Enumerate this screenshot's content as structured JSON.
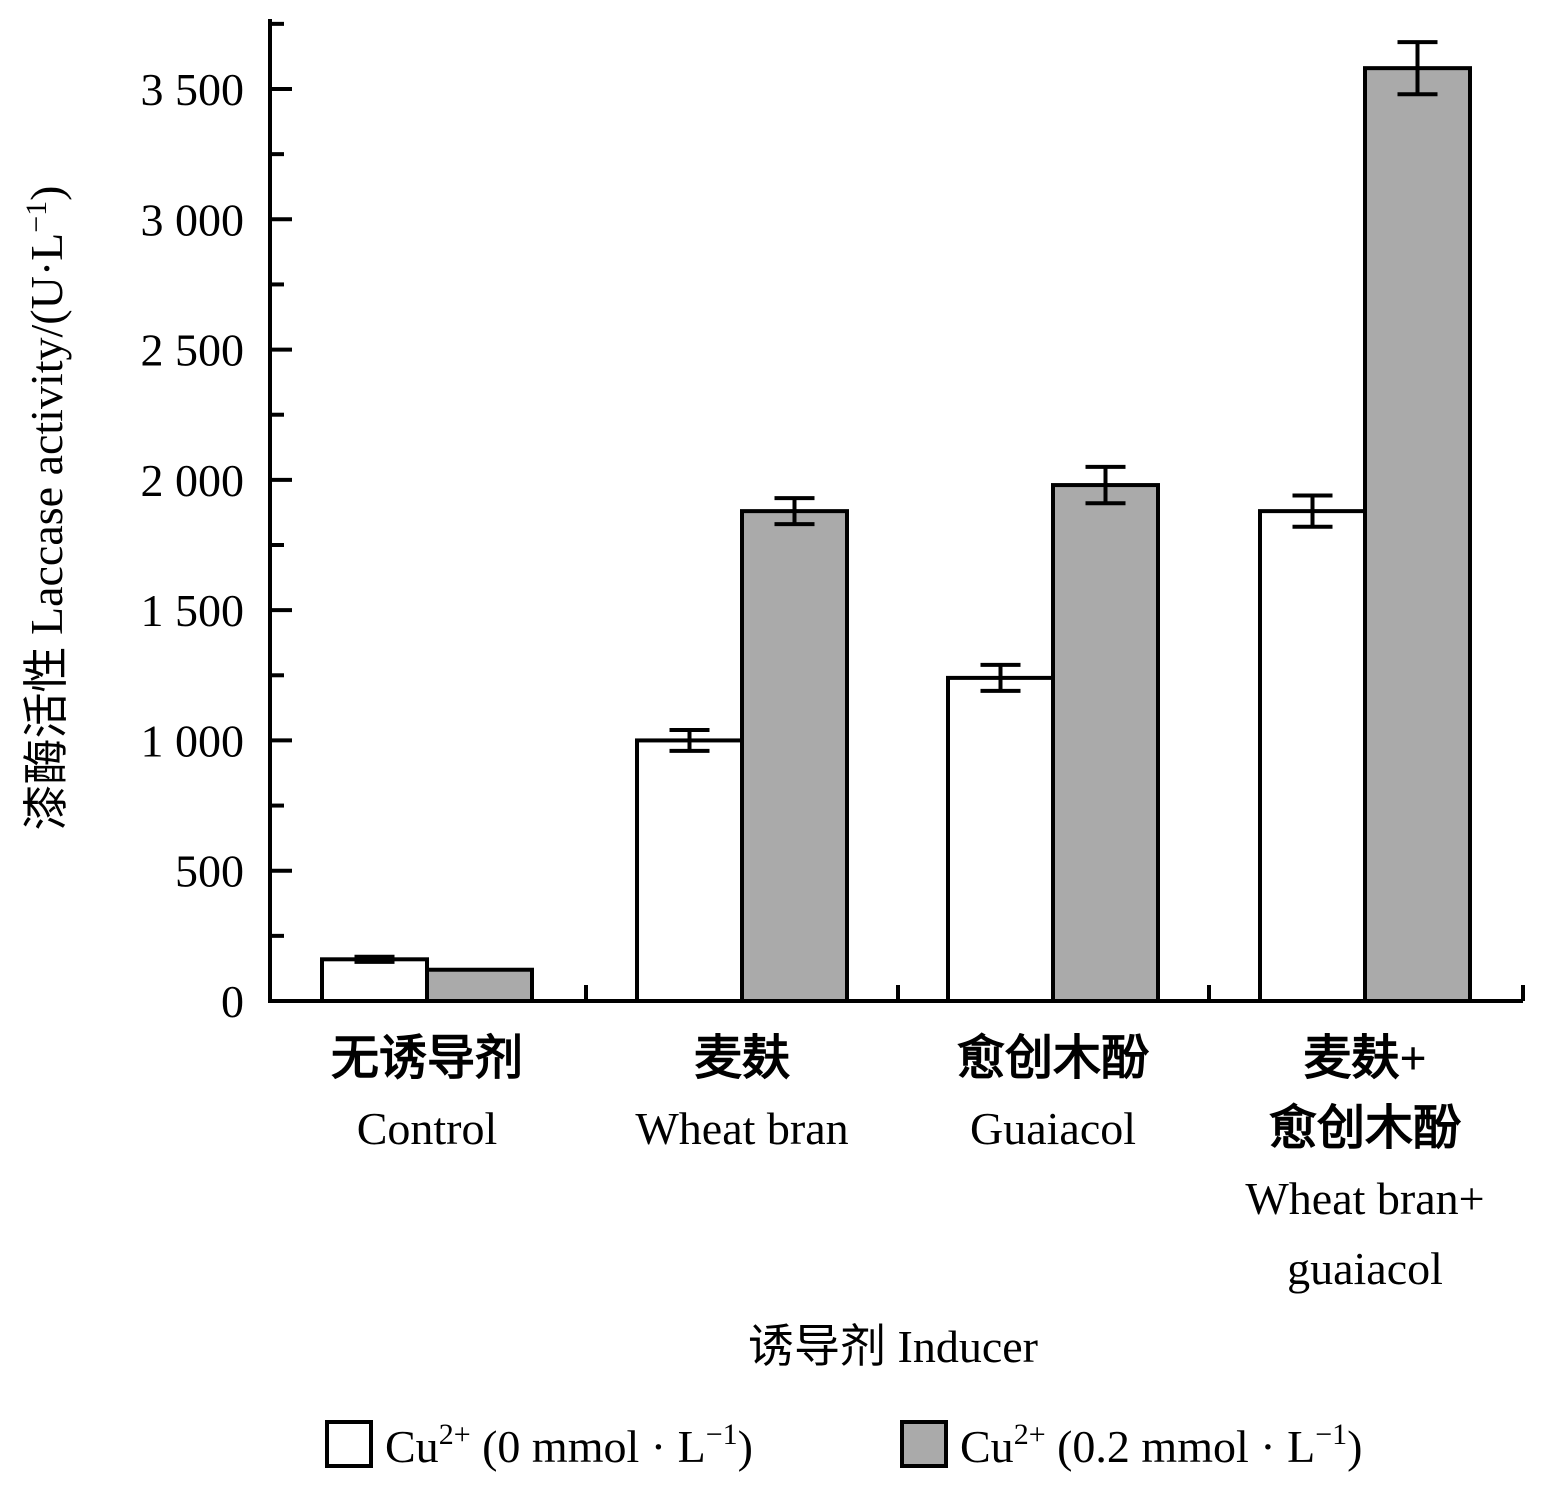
{
  "chart_data": {
    "type": "bar",
    "categories": [
      {
        "cn": "无诱导剂",
        "en": [
          "Control"
        ]
      },
      {
        "cn": "麦麸",
        "en": [
          "Wheat bran"
        ]
      },
      {
        "cn": "愈创木酚",
        "en": [
          "Guaiacol"
        ]
      },
      {
        "cn": "麦麸+",
        "cn2": "愈创木酚",
        "en": [
          "Wheat bran+",
          "guaiacol"
        ]
      }
    ],
    "series": [
      {
        "name": "Cu²⁺ (0 mmol · L⁻¹)",
        "name_parts": [
          "Cu",
          "2+",
          " (0 mmol · L",
          "−1",
          ")"
        ],
        "color": "#ffffff",
        "values": [
          160,
          1000,
          1240,
          1880
        ],
        "errors": [
          10,
          40,
          50,
          60
        ]
      },
      {
        "name": "Cu²⁺ (0.2 mmol · L⁻¹)",
        "name_parts": [
          "Cu",
          "2+",
          " (0.2 mmol · L",
          "−1",
          ")"
        ],
        "color": "#aaaaaa",
        "values": [
          120,
          1880,
          1980,
          3580
        ],
        "errors": [
          0,
          50,
          70,
          100
        ]
      }
    ],
    "xlabel": "诱导剂 Inducer",
    "ylabel": "漆酶活性 Laccase activity/(U·L",
    "ylabel_sup": "−1",
    "ylabel_end": ")",
    "ylim": [
      0,
      3750
    ],
    "yticks": [
      0,
      500,
      1000,
      1500,
      2000,
      2500,
      3000,
      3500
    ],
    "ytick_labels": [
      "0",
      "500",
      "1 000",
      "1 500",
      "2 000",
      "2 500",
      "3 000",
      "3 500"
    ],
    "grid": false,
    "legend_position": "bottom"
  }
}
